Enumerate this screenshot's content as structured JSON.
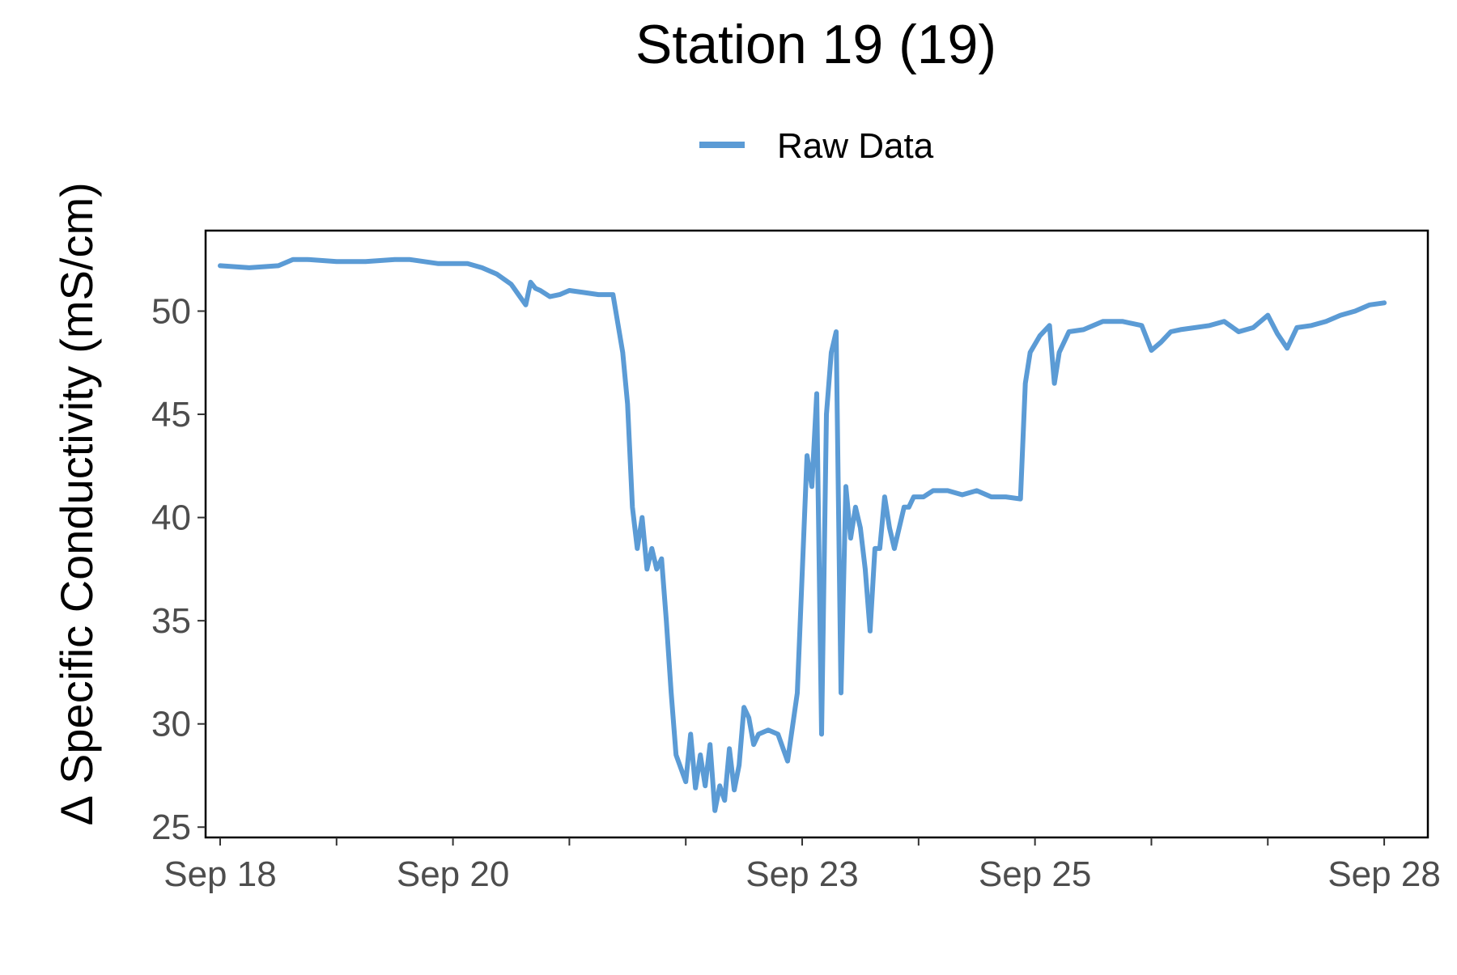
{
  "chart_data": {
    "type": "line",
    "title": "Station 19 (19)",
    "xlabel": "",
    "ylabel": "∆ Specific Conductivity (mS/cm)",
    "legend_position": "top",
    "grid": false,
    "x_type": "time",
    "xlim": [
      "2021-09-17T21:00",
      "2021-09-28T09:00"
    ],
    "ylim": [
      24.5,
      53.9
    ],
    "x_ticks": [
      "2021-09-18",
      "2021-09-19",
      "2021-09-20",
      "2021-09-21",
      "2021-09-22",
      "2021-09-23",
      "2021-09-24",
      "2021-09-25",
      "2021-09-26",
      "2021-09-27",
      "2021-09-28"
    ],
    "x_tick_labels": [
      {
        "at": "2021-09-18",
        "label": "Sep 18"
      },
      {
        "at": "2021-09-20",
        "label": "Sep 20"
      },
      {
        "at": "2021-09-23",
        "label": "Sep 23"
      },
      {
        "at": "2021-09-25",
        "label": "Sep 25"
      },
      {
        "at": "2021-09-28",
        "label": "Sep 28"
      }
    ],
    "y_ticks": [
      25,
      30,
      35,
      40,
      45,
      50
    ],
    "y_tick_labels": [
      "25",
      "30",
      "35",
      "40",
      "45",
      "50"
    ],
    "series": [
      {
        "name": "Raw Data",
        "color": "#5b9bd5",
        "x": [
          "2021-09-18T00:00",
          "2021-09-18T06:00",
          "2021-09-18T12:00",
          "2021-09-18T15:00",
          "2021-09-18T18:00",
          "2021-09-19T00:00",
          "2021-09-19T06:00",
          "2021-09-19T12:00",
          "2021-09-19T15:00",
          "2021-09-19T21:00",
          "2021-09-20T03:00",
          "2021-09-20T06:00",
          "2021-09-20T09:00",
          "2021-09-20T12:00",
          "2021-09-20T15:00",
          "2021-09-20T16:00",
          "2021-09-20T17:00",
          "2021-09-20T18:00",
          "2021-09-20T20:00",
          "2021-09-20T22:00",
          "2021-09-21T00:00",
          "2021-09-21T03:00",
          "2021-09-21T06:00",
          "2021-09-21T09:00",
          "2021-09-21T11:00",
          "2021-09-21T12:00",
          "2021-09-21T13:00",
          "2021-09-21T14:00",
          "2021-09-21T15:00",
          "2021-09-21T16:00",
          "2021-09-21T17:00",
          "2021-09-21T18:00",
          "2021-09-21T19:00",
          "2021-09-21T20:00",
          "2021-09-21T21:00",
          "2021-09-21T22:00",
          "2021-09-22T00:00",
          "2021-09-22T01:00",
          "2021-09-22T02:00",
          "2021-09-22T03:00",
          "2021-09-22T04:00",
          "2021-09-22T05:00",
          "2021-09-22T06:00",
          "2021-09-22T07:00",
          "2021-09-22T08:00",
          "2021-09-22T09:00",
          "2021-09-22T10:00",
          "2021-09-22T11:00",
          "2021-09-22T12:00",
          "2021-09-22T13:00",
          "2021-09-22T14:00",
          "2021-09-22T15:00",
          "2021-09-22T17:00",
          "2021-09-22T19:00",
          "2021-09-22T21:00",
          "2021-09-22T23:00",
          "2021-09-23T01:00",
          "2021-09-23T02:00",
          "2021-09-23T03:00",
          "2021-09-23T04:00",
          "2021-09-23T05:00",
          "2021-09-23T06:00",
          "2021-09-23T07:00",
          "2021-09-23T08:00",
          "2021-09-23T09:00",
          "2021-09-23T10:00",
          "2021-09-23T11:00",
          "2021-09-23T12:00",
          "2021-09-23T13:00",
          "2021-09-23T14:00",
          "2021-09-23T15:00",
          "2021-09-23T16:00",
          "2021-09-23T17:00",
          "2021-09-23T18:00",
          "2021-09-23T19:00",
          "2021-09-23T20:00",
          "2021-09-23T21:00",
          "2021-09-23T22:00",
          "2021-09-23T23:00",
          "2021-09-24T01:00",
          "2021-09-24T03:00",
          "2021-09-24T06:00",
          "2021-09-24T09:00",
          "2021-09-24T12:00",
          "2021-09-24T15:00",
          "2021-09-24T18:00",
          "2021-09-24T21:00",
          "2021-09-24T22:00",
          "2021-09-24T23:00",
          "2021-09-25T01:00",
          "2021-09-25T03:00",
          "2021-09-25T04:00",
          "2021-09-25T05:00",
          "2021-09-25T07:00",
          "2021-09-25T10:00",
          "2021-09-25T14:00",
          "2021-09-25T18:00",
          "2021-09-25T22:00",
          "2021-09-26T00:00",
          "2021-09-26T02:00",
          "2021-09-26T04:00",
          "2021-09-26T06:00",
          "2021-09-26T09:00",
          "2021-09-26T12:00",
          "2021-09-26T15:00",
          "2021-09-26T18:00",
          "2021-09-26T21:00",
          "2021-09-27T00:00",
          "2021-09-27T02:00",
          "2021-09-27T04:00",
          "2021-09-27T06:00",
          "2021-09-27T09:00",
          "2021-09-27T12:00",
          "2021-09-27T15:00",
          "2021-09-27T18:00",
          "2021-09-27T21:00",
          "2021-09-28T00:00"
        ],
        "values": [
          52.2,
          52.1,
          52.2,
          52.5,
          52.5,
          52.4,
          52.4,
          52.5,
          52.5,
          52.3,
          52.3,
          52.1,
          51.8,
          51.3,
          50.3,
          51.4,
          51.1,
          51.0,
          50.7,
          50.8,
          51.0,
          50.9,
          50.8,
          50.8,
          48.0,
          45.5,
          40.5,
          38.5,
          40.0,
          37.5,
          38.5,
          37.5,
          38.0,
          35.0,
          31.5,
          28.5,
          27.2,
          29.5,
          26.9,
          28.5,
          27.0,
          29.0,
          25.8,
          27.0,
          26.3,
          28.8,
          26.8,
          28.0,
          30.8,
          30.3,
          29.0,
          29.5,
          29.7,
          29.5,
          28.2,
          31.5,
          43.0,
          41.5,
          46.0,
          29.5,
          45.0,
          48.0,
          49.0,
          31.5,
          41.5,
          39.0,
          40.5,
          39.5,
          37.5,
          34.5,
          38.5,
          38.5,
          41.0,
          39.5,
          38.5,
          39.5,
          40.5,
          40.5,
          41.0,
          41.0,
          41.3,
          41.3,
          41.1,
          41.3,
          41.0,
          41.0,
          40.9,
          46.5,
          48.0,
          48.8,
          49.3,
          46.5,
          48.0,
          49.0,
          49.1,
          49.5,
          49.5,
          49.3,
          48.1,
          48.5,
          49.0,
          49.1,
          49.2,
          49.3,
          49.5,
          49.0,
          49.2,
          49.8,
          48.9,
          48.2,
          49.2,
          49.3,
          49.5,
          49.8,
          50.0,
          50.3,
          50.4
        ]
      }
    ]
  }
}
